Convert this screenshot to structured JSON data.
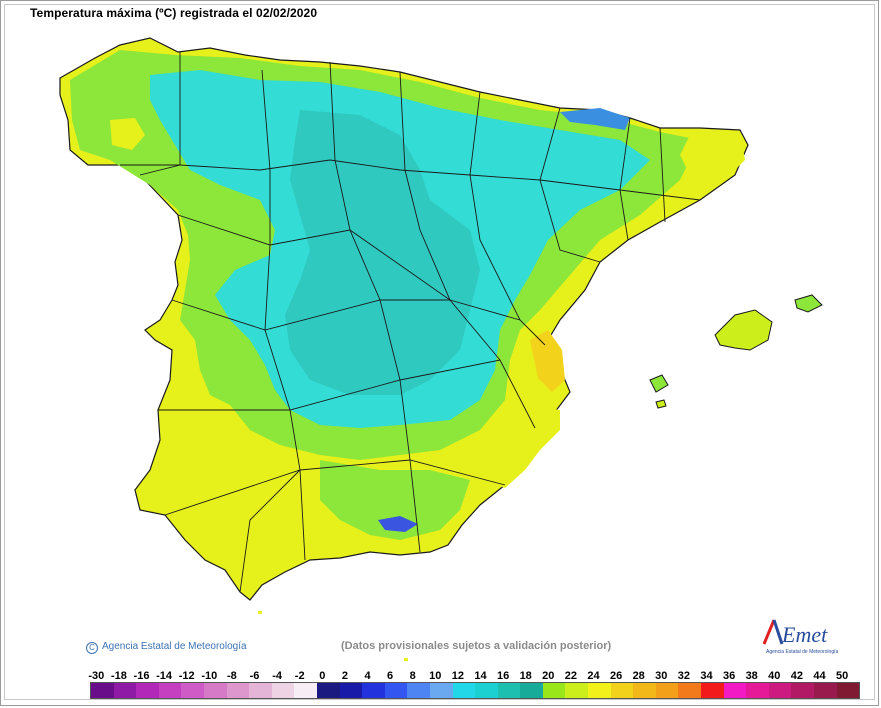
{
  "title": "Temperatura máxima (ºC) registrada el 02/02/2020",
  "copyright": "Agencia Estatal de Meteorología",
  "disclaimer": "(Datos provisionales sujetos a validación posterior)",
  "logo": {
    "brand": "AEmet",
    "subtitle": "Agencia Estatal de Meteorología"
  },
  "legend": {
    "labels": [
      "-30",
      "-18",
      "-16",
      "-14",
      "-12",
      "-10",
      "-8",
      "-6",
      "-4",
      "-2",
      "0",
      "2",
      "4",
      "6",
      "8",
      "10",
      "12",
      "14",
      "16",
      "18",
      "20",
      "22",
      "24",
      "26",
      "28",
      "30",
      "32",
      "34",
      "36",
      "38",
      "40",
      "42",
      "44",
      "50"
    ],
    "colors": [
      "#6a0d8a",
      "#8f1aa6",
      "#b228b8",
      "#c440c0",
      "#cf5cc6",
      "#d679c6",
      "#dd97cc",
      "#e4b5d6",
      "#eed3e4",
      "#f6eef4",
      "#1a1a80",
      "#1a1aa8",
      "#2233dd",
      "#3355f0",
      "#4d86f2",
      "#6aa8f0",
      "#22d8e8",
      "#1ccfd0",
      "#1cbfb0",
      "#18ab9a",
      "#99e61a",
      "#ccee1a",
      "#f2f21a",
      "#f2d21a",
      "#f2b81a",
      "#f2a01a",
      "#f27a1a",
      "#f21a1a",
      "#f21ac4",
      "#e61a99",
      "#cc1a80",
      "#b21a66",
      "#991a4d",
      "#801a33"
    ]
  },
  "map_regions": {
    "sea_color": "#ffffff",
    "border_color": "#1a1a1a",
    "cold_center": "#2fc9c0",
    "cool": "#33dcd4",
    "mild": "#8de63a",
    "warm": "#e6f01a",
    "warmest": "#f2d21a",
    "coldest": "#3a55e0"
  }
}
